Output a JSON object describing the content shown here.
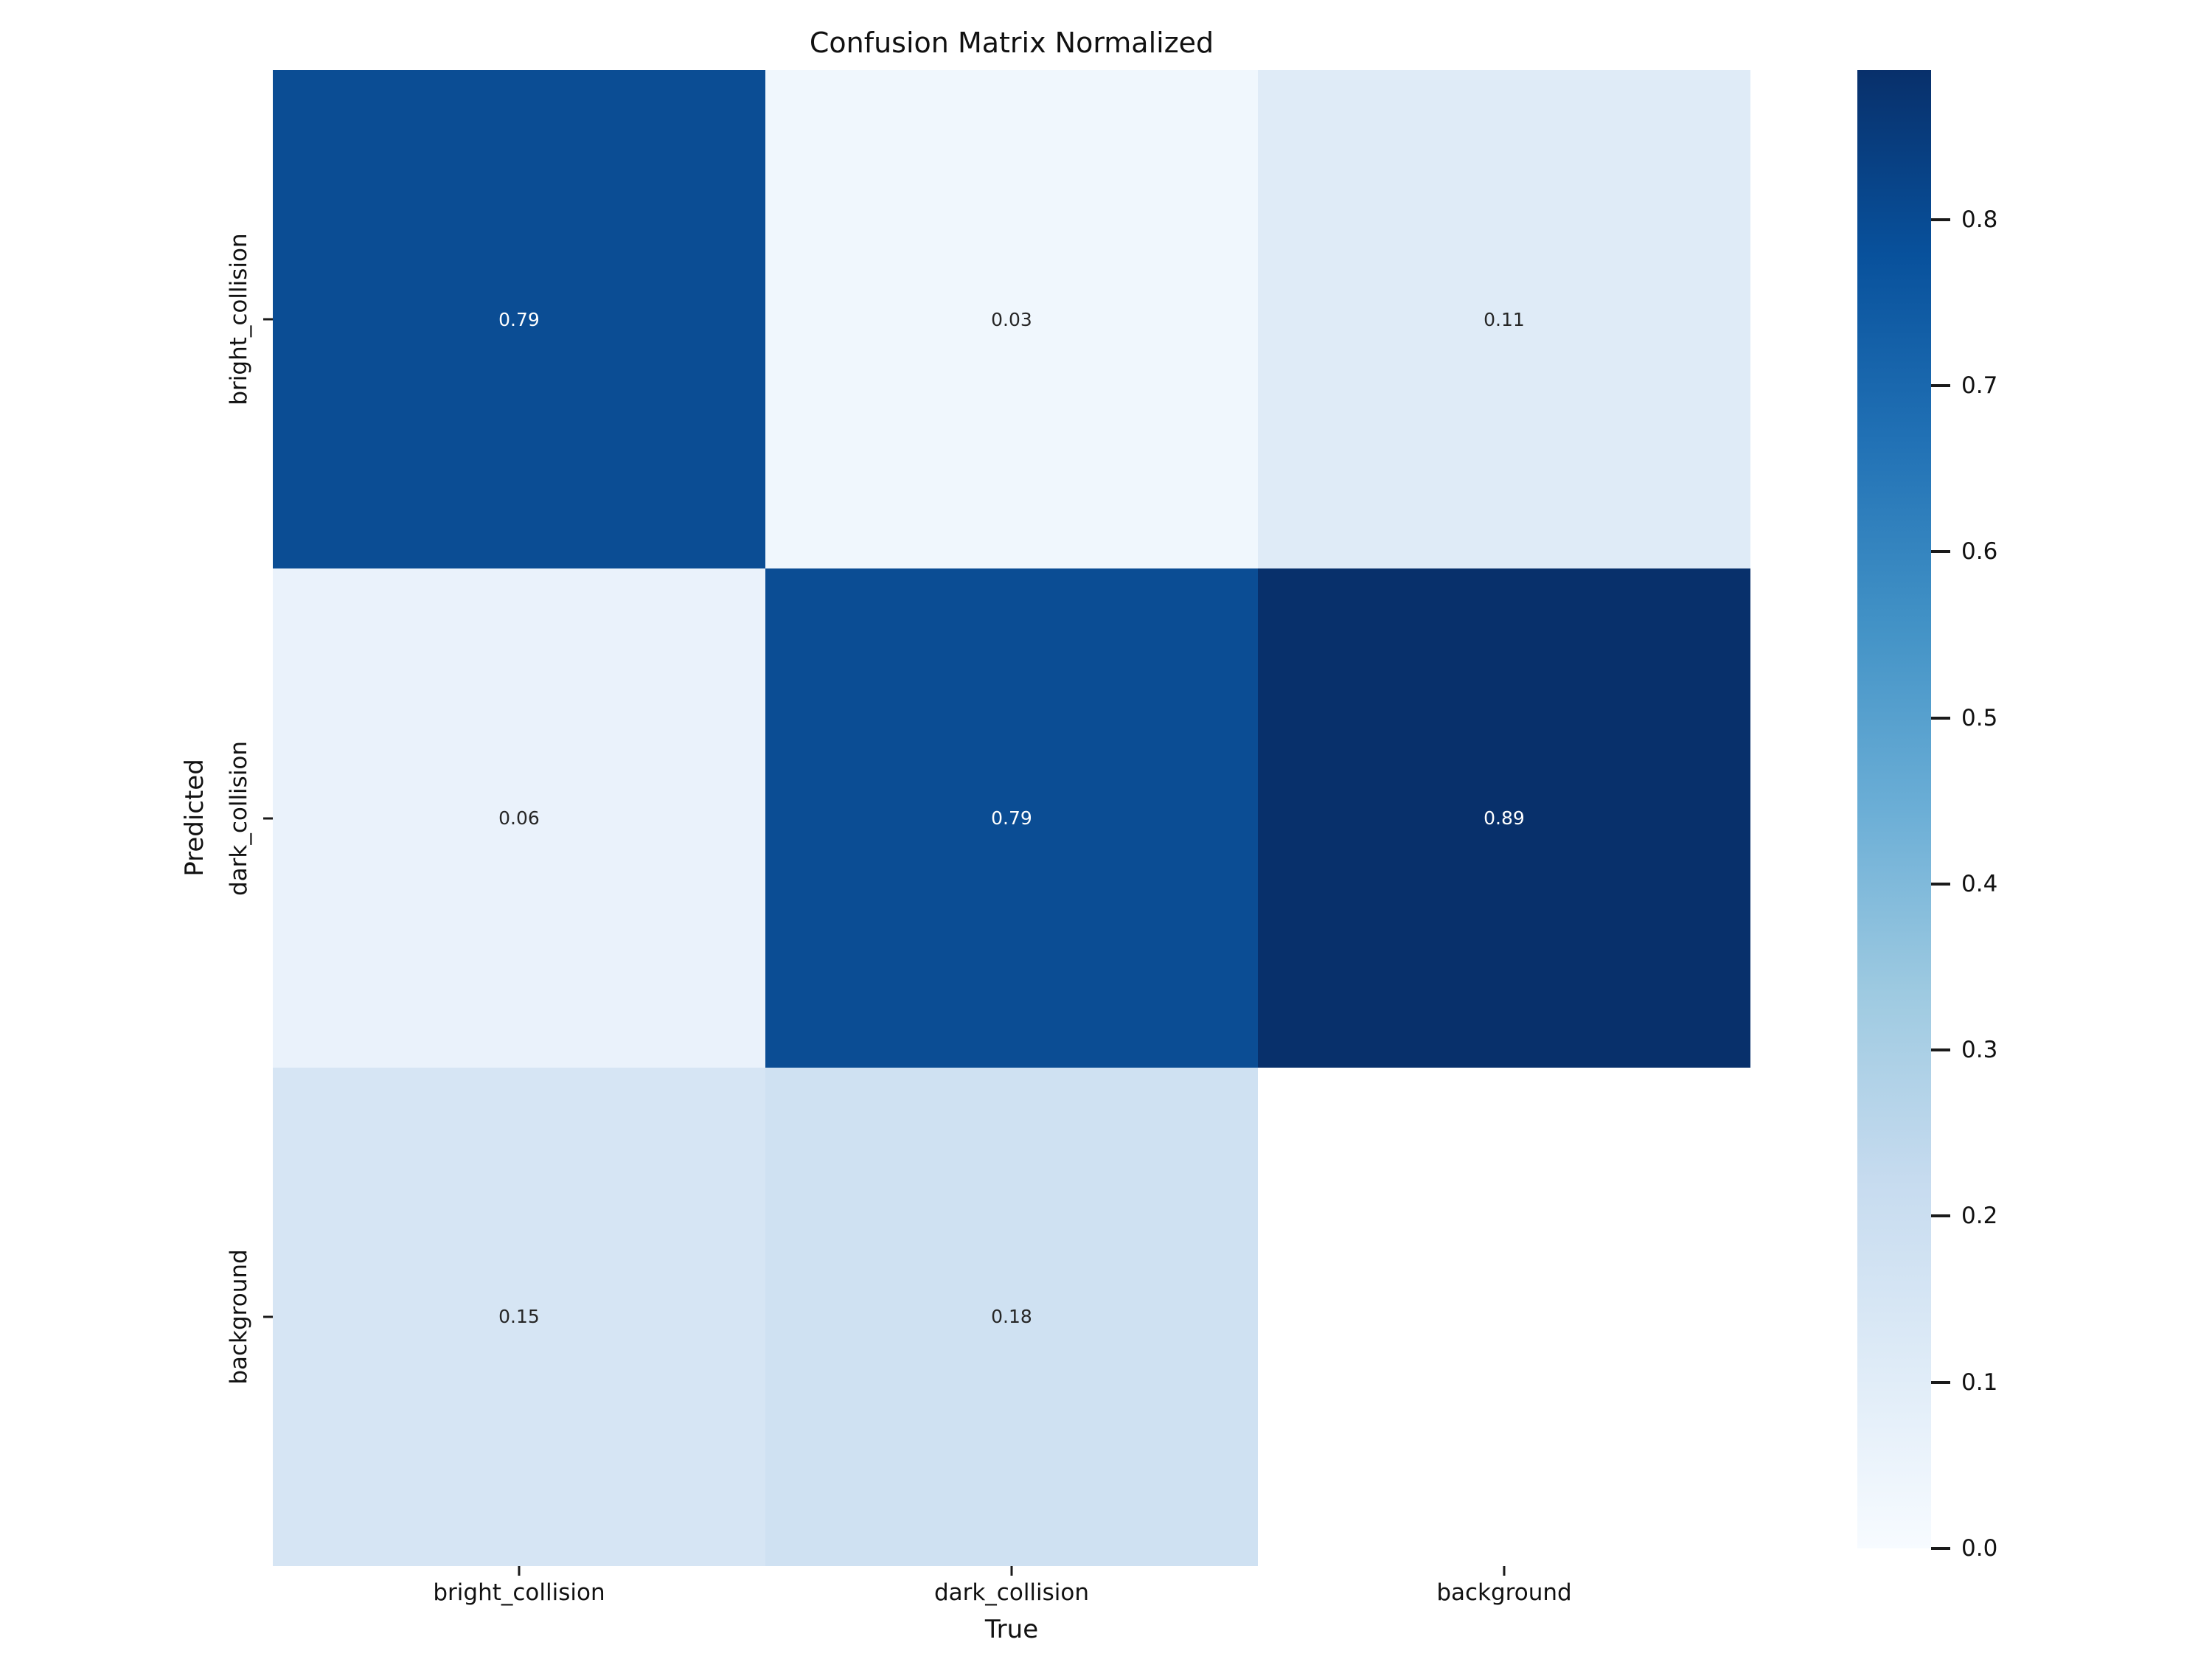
{
  "figure": {
    "background_color": "#ffffff",
    "text_color": "#111111"
  },
  "chart_data": {
    "type": "heatmap",
    "title": "Confusion Matrix Normalized",
    "xlabel": "True",
    "ylabel": "Predicted",
    "x_categories": [
      "bright_collision",
      "dark_collision",
      "background"
    ],
    "y_categories": [
      "bright_collision",
      "dark_collision",
      "background"
    ],
    "matrix": [
      [
        0.79,
        0.03,
        0.11
      ],
      [
        0.06,
        0.79,
        0.89
      ],
      [
        0.15,
        0.18,
        null
      ]
    ],
    "cell_labels": [
      [
        "0.79",
        "0.03",
        "0.11"
      ],
      [
        "0.06",
        "0.79",
        "0.89"
      ],
      [
        "0.15",
        "0.18",
        ""
      ]
    ],
    "cell_colors": [
      [
        "#0b4d94",
        "#f0f7fd",
        "#dfebf7"
      ],
      [
        "#eaf2fb",
        "#0b4d94",
        "#08306b"
      ],
      [
        "#d6e5f4",
        "#cfe1f2",
        "#ffffff"
      ]
    ],
    "cell_text_colors": [
      [
        "#ffffff",
        "#262626",
        "#262626"
      ],
      [
        "#262626",
        "#ffffff",
        "#ffffff"
      ],
      [
        "#262626",
        "#262626",
        "#262626"
      ]
    ],
    "grid": false,
    "legend_position": "right-colorbar",
    "colormap": {
      "name": "Blues",
      "stops_bottom_to_top": [
        "#f7fbff",
        "#deebf7",
        "#c6dbef",
        "#9ecae1",
        "#6baed6",
        "#4292c6",
        "#2171b5",
        "#08519c",
        "#08306b"
      ]
    },
    "colorbar": {
      "vmin": 0.0,
      "vmax": 0.89,
      "tick_labels": [
        "0.0",
        "0.1",
        "0.2",
        "0.3",
        "0.4",
        "0.5",
        "0.6",
        "0.7",
        "0.8"
      ]
    }
  }
}
